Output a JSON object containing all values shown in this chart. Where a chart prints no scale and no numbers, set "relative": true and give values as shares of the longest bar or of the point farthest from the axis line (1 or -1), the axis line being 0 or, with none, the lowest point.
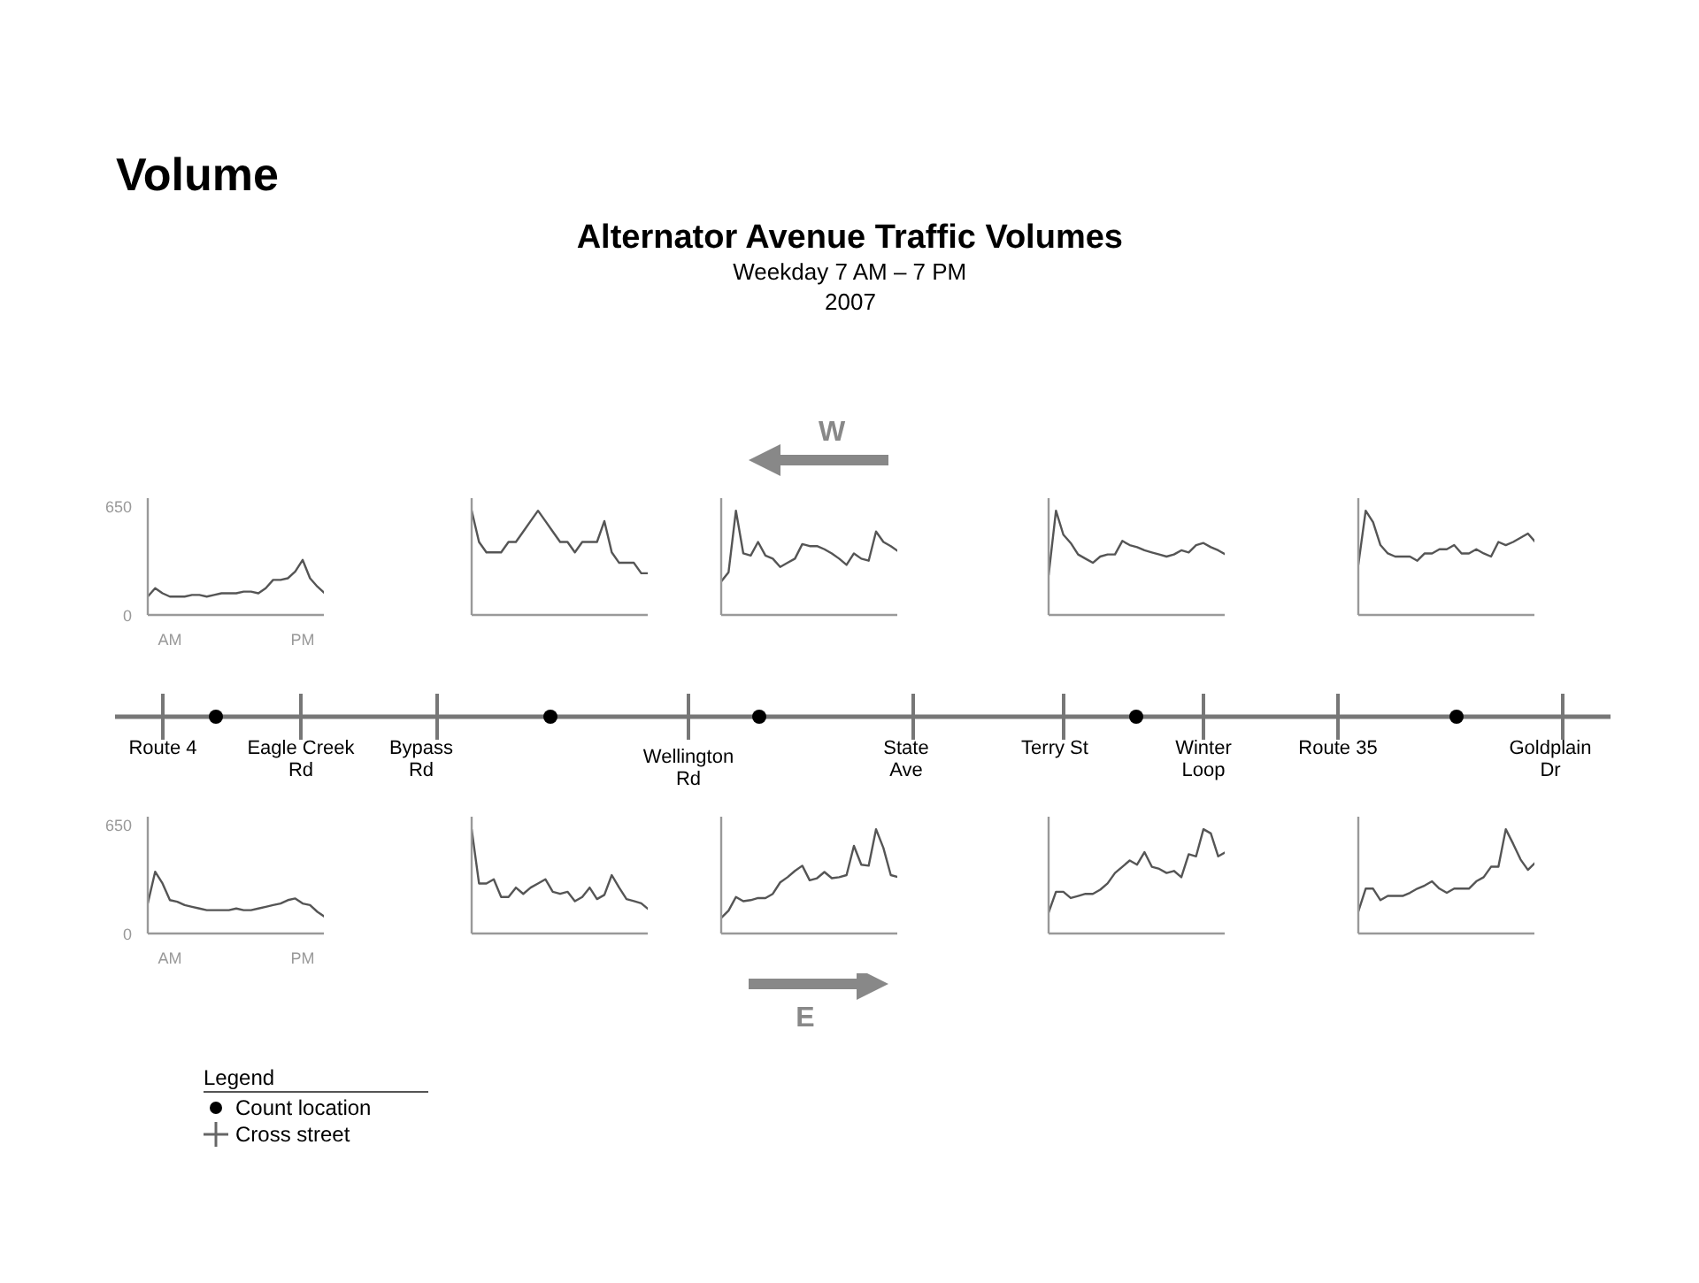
{
  "chart_data": [
    {
      "type": "other",
      "title": "Alternator Avenue Traffic Volumes",
      "subtitle": "Weekday 7 AM – 7 PM",
      "annotations": [
        "Volume",
        "2007",
        "W",
        "E",
        "Route 4",
        "Eagle Creek\nRd",
        "Bypass\nRd",
        "Wellington\nRd",
        "State\nAve",
        "Terry St",
        "Winter\nLoop",
        "Route 35",
        "Goldplain\nDr",
        "Legend",
        "Count location",
        "Cross street"
      ]
    },
    {
      "type": "line",
      "color": "#555555",
      "categories": [
        null,
        null,
        null,
        "AM",
        null,
        null,
        null,
        null,
        null,
        null,
        null,
        null,
        null,
        null,
        null,
        null,
        null,
        null,
        null,
        null,
        null,
        "PM",
        null,
        null,
        null
      ],
      "values": [
        110,
        160,
        130,
        110,
        110,
        110,
        120,
        120,
        110,
        120,
        130,
        130,
        130,
        140,
        140,
        130,
        160,
        210,
        210,
        220,
        260,
        330,
        220,
        170,
        130
      ],
      "ylim": [
        0,
        700
      ],
      "yticks": [
        0,
        650
      ]
    },
    {
      "type": "line",
      "color": "#555555",
      "relative": true,
      "categories": [
        null,
        null,
        null,
        null,
        null,
        null,
        null,
        null,
        null,
        null,
        null,
        null,
        null,
        null,
        null,
        null,
        null,
        null,
        null,
        null,
        null,
        null,
        null,
        null,
        null
      ],
      "values": [
        1,
        0.7,
        0.6,
        0.6,
        0.6,
        0.7,
        0.7,
        0.8,
        0.9,
        1,
        0.9,
        0.8,
        0.7,
        0.7,
        0.6,
        0.7,
        0.7,
        0.7,
        0.9,
        0.6,
        0.5,
        0.5,
        0.5,
        0.4,
        0.4
      ]
    },
    {
      "type": "line",
      "color": "#555555",
      "relative": true,
      "categories": [
        null,
        null,
        null,
        null,
        null,
        null,
        null,
        null,
        null,
        null,
        null,
        null,
        null,
        null,
        null,
        null,
        null,
        null,
        null,
        null,
        null,
        null,
        null,
        null,
        null
      ],
      "values": [
        0.32,
        0.41,
        1,
        0.59,
        0.57,
        0.7,
        0.57,
        0.54,
        0.46,
        0.5,
        0.54,
        0.68,
        0.66,
        0.66,
        0.63,
        0.59,
        0.54,
        0.48,
        0.59,
        0.54,
        0.52,
        0.8,
        0.7,
        0.66,
        0.61
      ]
    },
    {
      "type": "line",
      "color": "#555555",
      "relative": true,
      "categories": [
        null,
        null,
        null,
        null,
        null,
        null,
        null,
        null,
        null,
        null,
        null,
        null,
        null,
        null,
        null,
        null,
        null,
        null,
        null,
        null,
        null,
        null,
        null,
        null,
        null
      ],
      "values": [
        0.38,
        1,
        0.77,
        0.69,
        0.58,
        0.54,
        0.5,
        0.56,
        0.58,
        0.58,
        0.71,
        0.67,
        0.65,
        0.62,
        0.6,
        0.58,
        0.56,
        0.58,
        0.62,
        0.6,
        0.67,
        0.69,
        0.65,
        0.62,
        0.58
      ]
    },
    {
      "type": "line",
      "color": "#555555",
      "relative": true,
      "categories": [
        null,
        null,
        null,
        null,
        null,
        null,
        null,
        null,
        null,
        null,
        null,
        null,
        null,
        null,
        null,
        null,
        null,
        null,
        null,
        null,
        null,
        null,
        null,
        null,
        null
      ],
      "values": [
        0.48,
        1,
        0.89,
        0.67,
        0.59,
        0.56,
        0.56,
        0.56,
        0.52,
        0.59,
        0.59,
        0.63,
        0.63,
        0.67,
        0.59,
        0.59,
        0.63,
        0.59,
        0.56,
        0.7,
        0.67,
        0.7,
        0.74,
        0.78,
        0.7
      ]
    },
    {
      "type": "line",
      "color": "#555555",
      "categories": [
        null,
        null,
        null,
        "AM",
        null,
        null,
        null,
        null,
        null,
        null,
        null,
        null,
        null,
        null,
        null,
        null,
        null,
        null,
        null,
        null,
        null,
        "PM",
        null,
        null,
        null
      ],
      "values": [
        180,
        370,
        300,
        200,
        190,
        170,
        160,
        150,
        140,
        140,
        140,
        140,
        150,
        140,
        140,
        150,
        160,
        170,
        180,
        200,
        210,
        180,
        170,
        130,
        100
      ],
      "ylim": [
        0,
        700
      ],
      "yticks": [
        0,
        650
      ]
    },
    {
      "type": "line",
      "color": "#555555",
      "relative": true,
      "categories": [
        null,
        null,
        null,
        null,
        null,
        null,
        null,
        null,
        null,
        null,
        null,
        null,
        null,
        null,
        null,
        null,
        null,
        null,
        null,
        null,
        null,
        null,
        null,
        null,
        null
      ],
      "values": [
        1,
        0.48,
        0.48,
        0.52,
        0.35,
        0.35,
        0.44,
        0.38,
        0.44,
        0.48,
        0.52,
        0.4,
        0.38,
        0.4,
        0.31,
        0.35,
        0.44,
        0.33,
        0.37,
        0.56,
        0.44,
        0.33,
        0.31,
        0.29,
        0.23
      ]
    },
    {
      "type": "line",
      "color": "#555555",
      "relative": true,
      "categories": [
        null,
        null,
        null,
        null,
        null,
        null,
        null,
        null,
        null,
        null,
        null,
        null,
        null,
        null,
        null,
        null,
        null,
        null,
        null,
        null,
        null,
        null,
        null,
        null,
        null
      ],
      "values": [
        0.15,
        0.22,
        0.35,
        0.31,
        0.32,
        0.34,
        0.34,
        0.38,
        0.49,
        0.54,
        0.6,
        0.65,
        0.51,
        0.53,
        0.59,
        0.53,
        0.54,
        0.56,
        0.84,
        0.66,
        0.65,
        1,
        0.82,
        0.56,
        0.54
      ]
    },
    {
      "type": "line",
      "color": "#555555",
      "relative": true,
      "categories": [
        null,
        null,
        null,
        null,
        null,
        null,
        null,
        null,
        null,
        null,
        null,
        null,
        null,
        null,
        null,
        null,
        null,
        null,
        null,
        null,
        null,
        null,
        null,
        null,
        null
      ],
      "values": [
        0.2,
        0.4,
        0.4,
        0.34,
        0.36,
        0.38,
        0.38,
        0.42,
        0.48,
        0.58,
        0.64,
        0.7,
        0.66,
        0.78,
        0.64,
        0.62,
        0.58,
        0.6,
        0.54,
        0.76,
        0.74,
        1,
        0.96,
        0.74,
        0.78
      ]
    },
    {
      "type": "line",
      "color": "#555555",
      "relative": true,
      "categories": [
        null,
        null,
        null,
        null,
        null,
        null,
        null,
        null,
        null,
        null,
        null,
        null,
        null,
        null,
        null,
        null,
        null,
        null,
        null,
        null,
        null,
        null,
        null,
        null,
        null
      ],
      "values": [
        0.21,
        0.43,
        0.43,
        0.32,
        0.36,
        0.36,
        0.36,
        0.39,
        0.43,
        0.46,
        0.5,
        0.43,
        0.39,
        0.43,
        0.43,
        0.43,
        0.5,
        0.54,
        0.64,
        0.64,
        1,
        0.86,
        0.71,
        0.61,
        0.68
      ]
    }
  ]
}
